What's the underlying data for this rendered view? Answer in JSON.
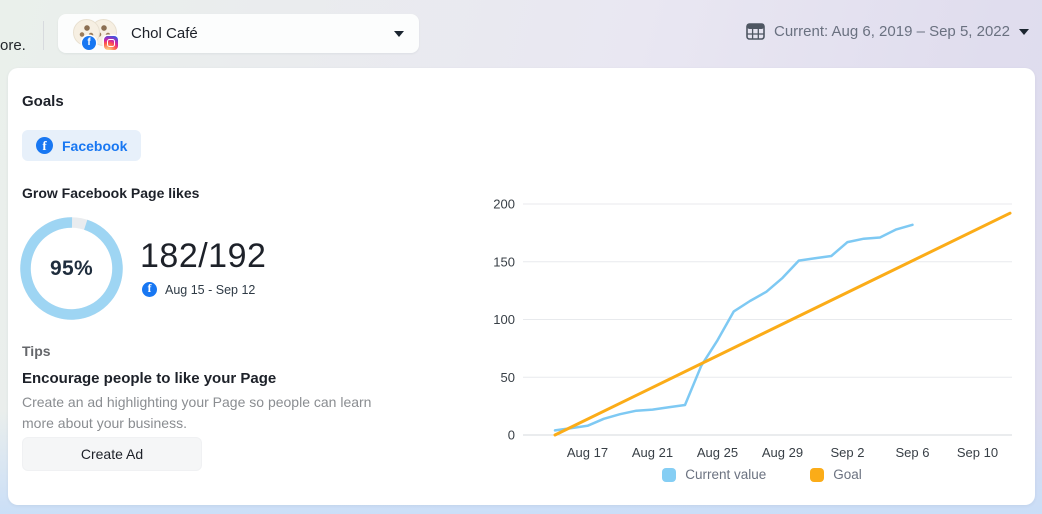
{
  "topbar": {
    "truncated_text": "ore.",
    "account_name": "Chol Café",
    "date_label": "Current: Aug 6, 2019 – Sep 5, 2022"
  },
  "card": {
    "title": "Goals",
    "network_tab_label": "Facebook",
    "goal_heading": "Grow Facebook Page likes",
    "progress_percent_label": "95%",
    "progress_value_label": "182/192",
    "goal_period_label": "Aug 15 - Sep 12",
    "tips_label": "Tips",
    "tip_heading": "Encourage people to like your Page",
    "tip_body": "Create an ad highlighting your Page so people can learn more about your business.",
    "create_ad_label": "Create Ad"
  },
  "progress": {
    "percent": 95,
    "ring_color": "#9ed5f3",
    "ring_track_color": "#e9ecef"
  },
  "chart_data": {
    "type": "line",
    "title": "",
    "ylim": [
      0,
      200
    ],
    "y_ticks": [
      0,
      50,
      100,
      150,
      200
    ],
    "x_tick_labels": [
      "Aug 17",
      "Aug 21",
      "Aug 25",
      "Aug 29",
      "Sep 2",
      "Sep 6",
      "Sep 10"
    ],
    "x_tick_days": [
      2,
      6,
      10,
      14,
      18,
      22,
      26
    ],
    "x_range_days": [
      0,
      28
    ],
    "x_start_date": "Aug 15",
    "grid": "horizontal",
    "legend_position": "bottom",
    "series": [
      {
        "name": "Current value",
        "color": "#7ec9f3",
        "width": 2.5,
        "days": [
          0,
          1,
          2,
          3,
          4,
          5,
          6,
          7,
          8,
          9,
          10,
          11,
          12,
          13,
          14,
          15,
          16,
          17,
          18,
          19,
          20,
          21,
          22
        ],
        "values": [
          4,
          6,
          8,
          14,
          18,
          21,
          22,
          24,
          26,
          60,
          82,
          107,
          116,
          124,
          136,
          151,
          153,
          155,
          167,
          170,
          171,
          178,
          182
        ]
      },
      {
        "name": "Goal",
        "color": "#FBAC18",
        "width": 3,
        "days": [
          0,
          28
        ],
        "values": [
          0,
          192
        ]
      }
    ],
    "legend": [
      {
        "label": "Current value",
        "color": "#85cef4"
      },
      {
        "label": "Goal",
        "color": "#FBAC18"
      }
    ]
  },
  "colors": {
    "facebook_blue": "#1877f2",
    "chip_background": "#E7F0FA",
    "card_background": "#ffffff",
    "gridline": "#e8eaed"
  }
}
